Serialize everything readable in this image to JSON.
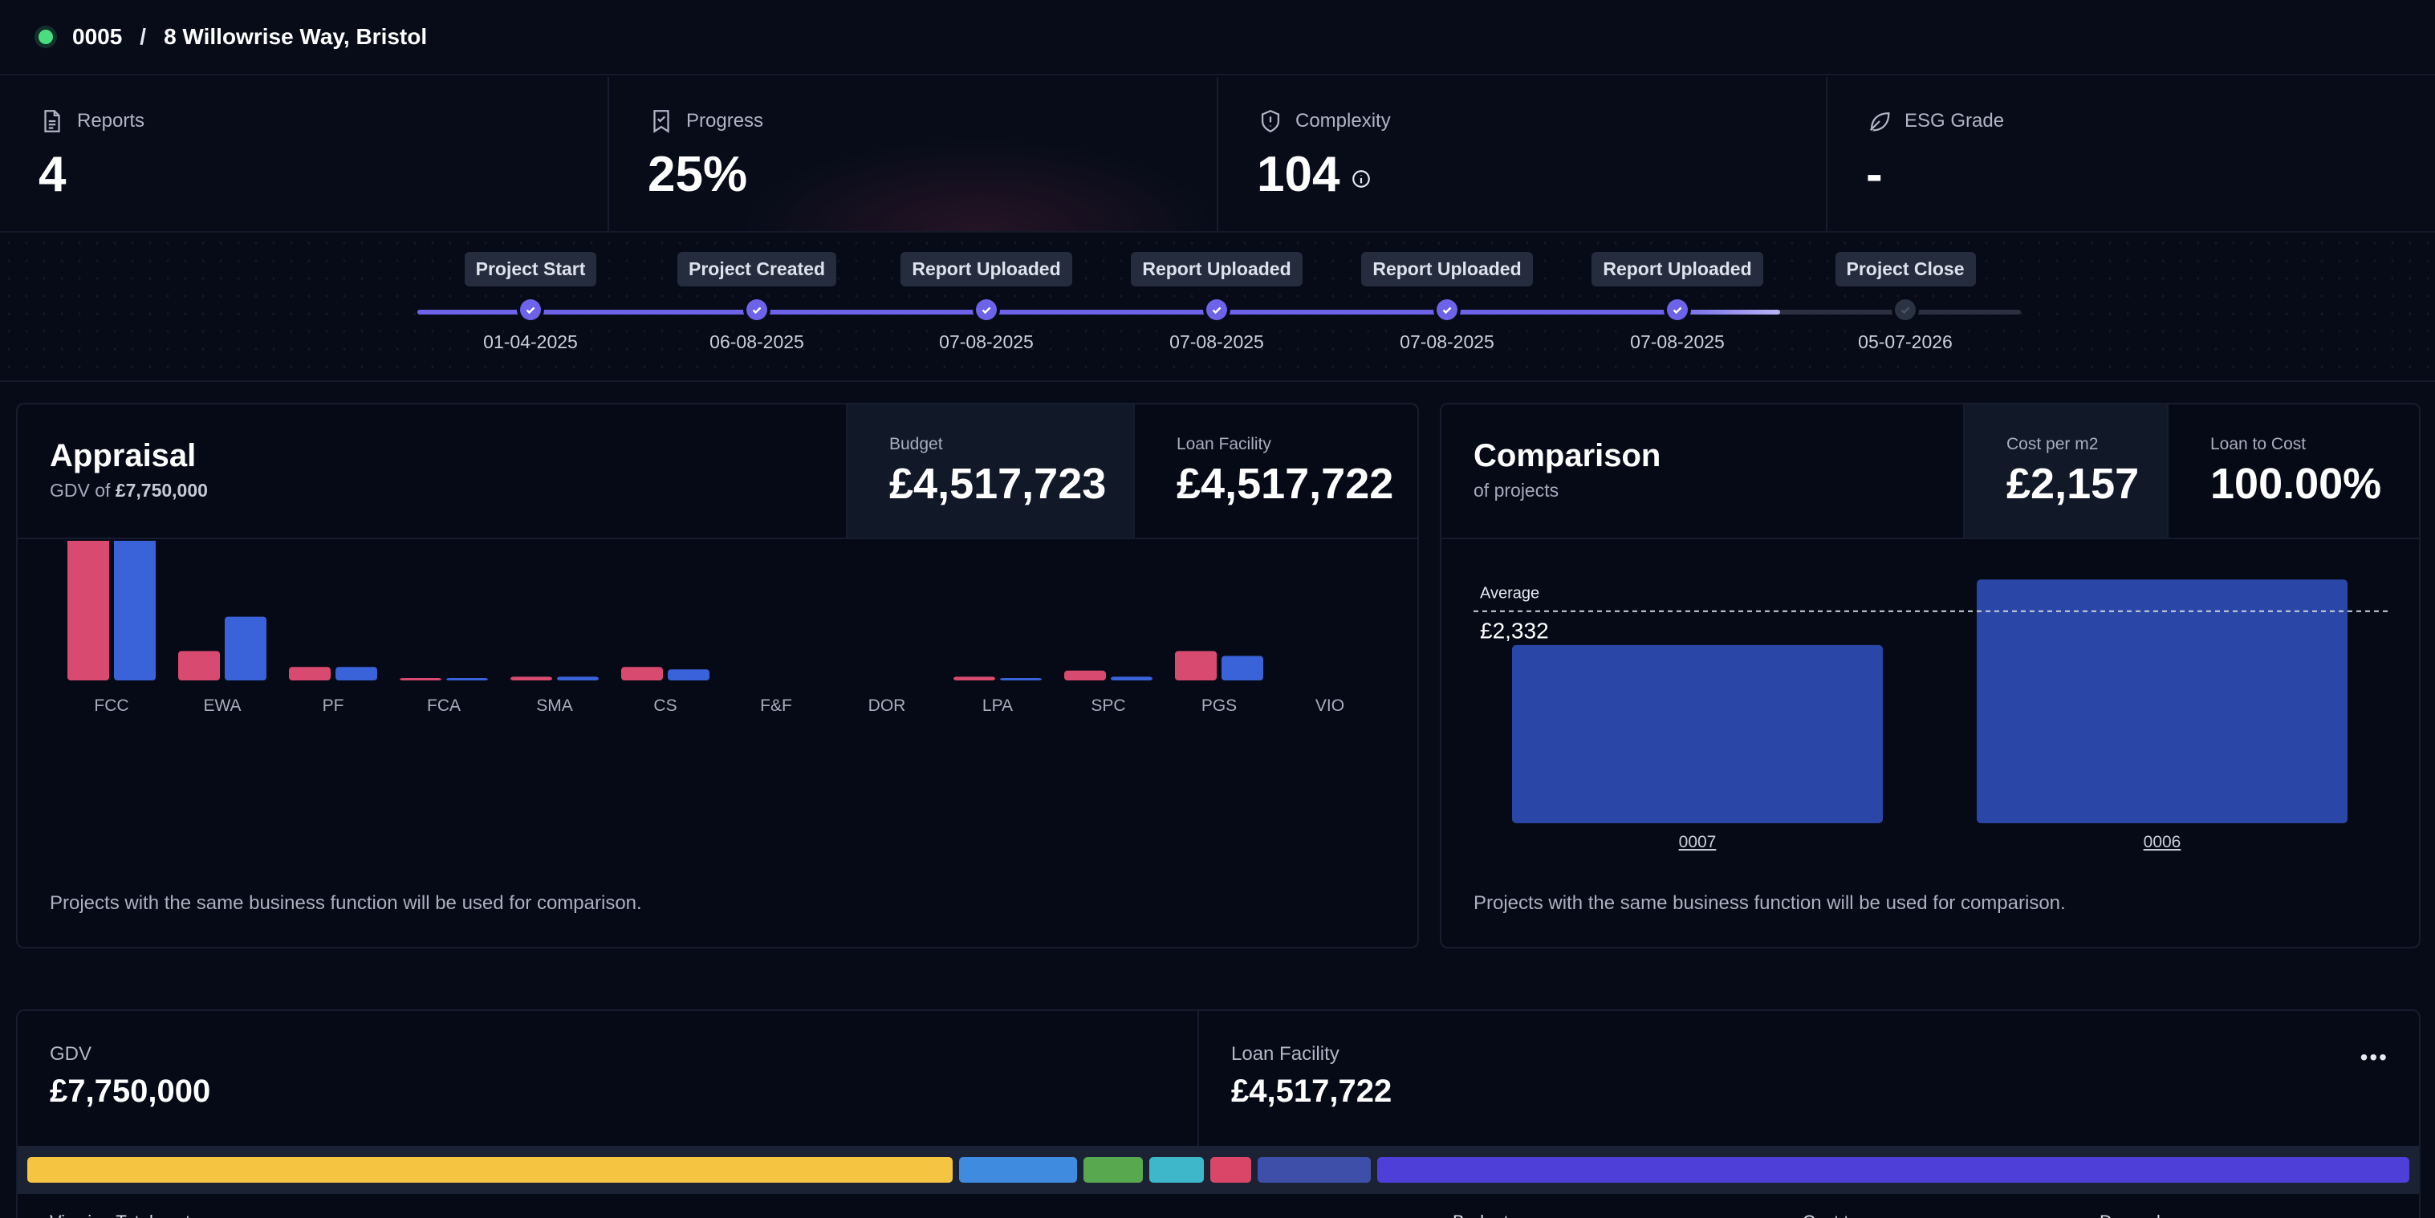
{
  "header": {
    "project_id": "0005",
    "separator": "/",
    "address": "8 Willowrise Way, Bristol"
  },
  "stats": [
    {
      "label": "Reports",
      "value": "4",
      "icon": "document-icon"
    },
    {
      "label": "Progress",
      "value": "25%",
      "icon": "bookmark-check-icon"
    },
    {
      "label": "Complexity",
      "value": "104",
      "icon": "shield-alert-icon"
    },
    {
      "label": "ESG Grade",
      "value": "-",
      "icon": "leaf-icon"
    }
  ],
  "timeline": {
    "progress_fraction": 0.85,
    "milestones": [
      {
        "label": "Project Start",
        "date": "01-04-2025",
        "done": true
      },
      {
        "label": "Project Created",
        "date": "06-08-2025",
        "done": true
      },
      {
        "label": "Report Uploaded",
        "date": "07-08-2025",
        "done": true
      },
      {
        "label": "Report Uploaded",
        "date": "07-08-2025",
        "done": true
      },
      {
        "label": "Report Uploaded",
        "date": "07-08-2025",
        "done": true
      },
      {
        "label": "Report Uploaded",
        "date": "07-08-2025",
        "done": true
      },
      {
        "label": "Project Close",
        "date": "05-07-2026",
        "done": false
      }
    ]
  },
  "appraisal": {
    "title": "Appraisal",
    "gdv_prefix": "GDV of",
    "gdv_value": "£7,750,000",
    "budget_label": "Budget",
    "budget_value": "£4,517,723",
    "loan_label": "Loan Facility",
    "loan_value": "£4,517,722",
    "note": "Projects with the same business function will be used for comparison."
  },
  "comparison": {
    "title": "Comparison",
    "subtitle": "of projects",
    "cost_label": "Cost per m2",
    "cost_value": "£2,157",
    "ltc_label": "Loan to Cost",
    "ltc_value": "100.00%",
    "average_label": "Average",
    "average_value": "£2,332",
    "note": "Projects with the same business function will be used for comparison."
  },
  "summary": {
    "gdv_label": "GDV",
    "gdv_value": "£7,750,000",
    "loan_label": "Loan Facility",
    "loan_value": "£4,517,722",
    "more_label": "•••",
    "row_label": "Viewing Total cost",
    "col_budget": "Budget",
    "col_cost": "Cost to",
    "col_drawn": "Drawndown"
  },
  "allocation": [
    {
      "color": "#f5c542",
      "share": 39
    },
    {
      "color": "#3f8be0",
      "share": 5
    },
    {
      "color": "#57a84f",
      "share": 2.5
    },
    {
      "color": "#3fb7cb",
      "share": 2.3
    },
    {
      "color": "#d94668",
      "share": 1.7
    },
    {
      "color": "#3d4fa8",
      "share": 4.8
    },
    {
      "color": "#4e3fd9",
      "share": 43.5
    }
  ],
  "chart_data": [
    {
      "type": "bar",
      "categories": [
        "FCC",
        "EWA",
        "PF",
        "FCA",
        "SMA",
        "CS",
        "F&F",
        "DOR",
        "LPA",
        "SPC",
        "PGS",
        "VIO"
      ],
      "series": [
        {
          "color": "#d84a70",
          "values": [
            1.0,
            0.12,
            0.055,
            0.006,
            0.015,
            0.055,
            0,
            0,
            0.015,
            0.04,
            0.12,
            0
          ]
        },
        {
          "color": "#3a63da",
          "values": [
            1.05,
            0.26,
            0.055,
            0.006,
            0.015,
            0.045,
            0,
            0,
            0.01,
            0.015,
            0.1,
            0
          ]
        }
      ],
      "ylim": [
        0,
        1.1
      ]
    },
    {
      "type": "bar",
      "categories": [
        "0007",
        "0006"
      ],
      "values": [
        1960,
        2680
      ],
      "average": 2332,
      "ylim": [
        0,
        3000
      ],
      "color": "#2a46a6"
    }
  ]
}
